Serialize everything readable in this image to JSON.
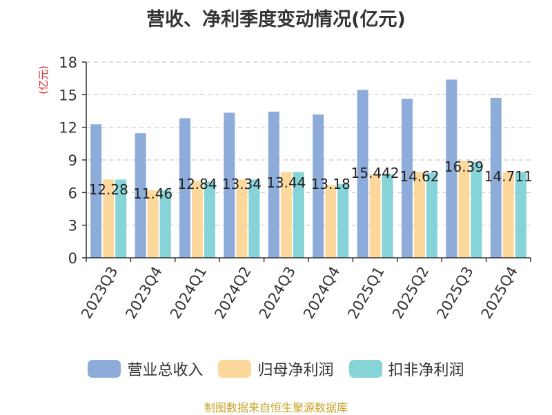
{
  "chart_data": {
    "type": "bar",
    "title": "营收、净利季度变动情况(亿元)",
    "ylabel": "(亿元)",
    "ylim": [
      0,
      18
    ],
    "yticks": [
      0,
      3,
      6,
      9,
      12,
      15,
      18
    ],
    "grid": true,
    "legend_position": "bottom",
    "categories": [
      "2023Q3",
      "2023Q4",
      "2024Q1",
      "2024Q2",
      "2024Q3",
      "2024Q4",
      "2025Q1",
      "2025Q2",
      "2025Q3",
      "2025Q4"
    ],
    "series": [
      {
        "name": "营业总收入",
        "color": "#8eacda",
        "values": [
          12.28,
          11.46,
          12.84,
          13.34,
          13.44,
          13.18,
          15.442,
          14.62,
          16.39,
          14.711
        ],
        "labels": [
          "12.28",
          "11.46",
          "12.84",
          "13.34",
          "13.44",
          "13.18",
          "15.442",
          "14.62",
          "16.39",
          "14.711"
        ]
      },
      {
        "name": "归母净利润",
        "color": "#fdd89c",
        "values": [
          7.2,
          6.2,
          7.1,
          7.2,
          7.9,
          6.7,
          7.7,
          7.9,
          8.9,
          7.9
        ]
      },
      {
        "name": "扣非净利润",
        "color": "#86d4d8",
        "values": [
          7.2,
          6.2,
          7.0,
          7.2,
          7.9,
          6.8,
          7.7,
          7.8,
          8.8,
          7.9
        ]
      }
    ]
  },
  "source": "制图数据来自恒生聚源数据库"
}
